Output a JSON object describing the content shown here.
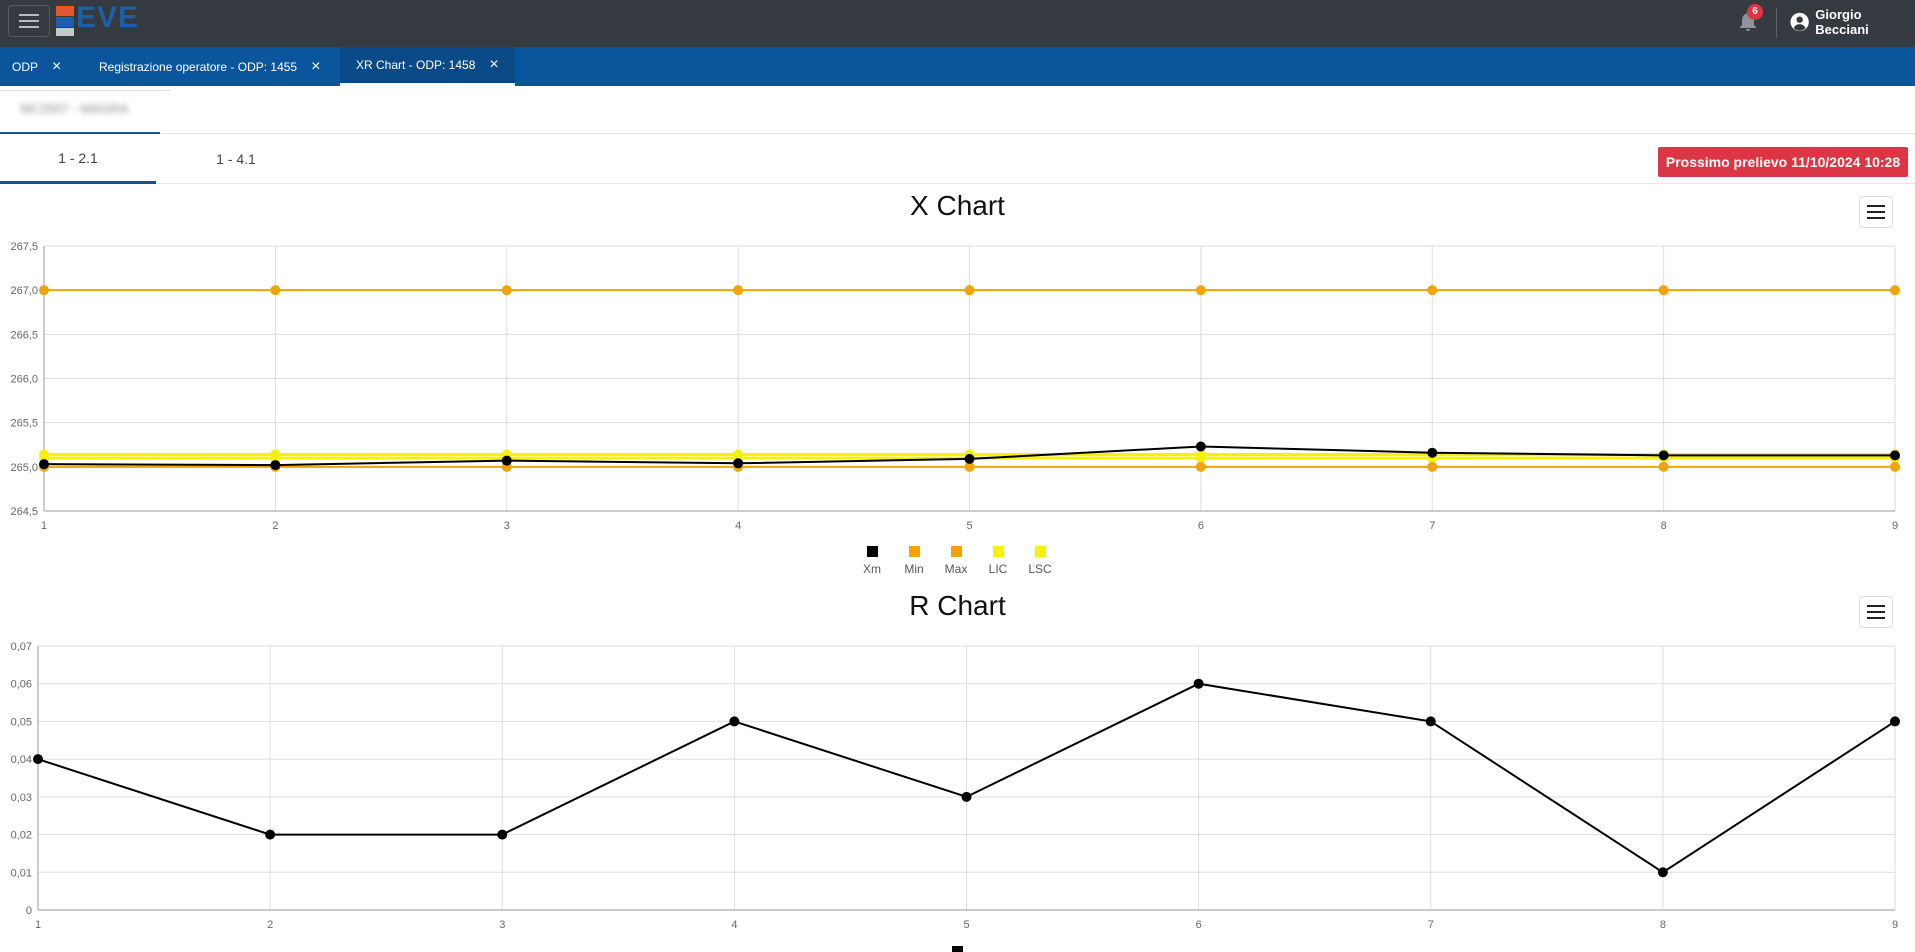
{
  "topbar": {
    "logo_text": "EVE",
    "notifications_count": "6",
    "user_name": "Giorgio Becciani"
  },
  "tabs": [
    {
      "label": "ODP"
    },
    {
      "label": "Registrazione operatore - ODP: 1455"
    },
    {
      "label": "XR Chart - ODP: 1458"
    }
  ],
  "subheader": {
    "blurred_text": "MC2507 - MAGRA"
  },
  "panel_tabs": [
    {
      "label": "1 - 2.1"
    },
    {
      "label": "1 - 4.1"
    }
  ],
  "alert_text": "Prossimo prelievo 11/10/2024 10:28",
  "colors": {
    "topbar": "#343a40",
    "tabbar": "#0b559c",
    "alert": "#dc3545",
    "xm": "#000000",
    "min": "#f0a30a",
    "max": "#f0a30a",
    "lic": "#f5f10a",
    "lsc": "#f5f10a"
  },
  "chart_data": [
    {
      "type": "line",
      "title": "X Chart",
      "x": [
        1,
        2,
        3,
        4,
        5,
        6,
        7,
        8,
        9
      ],
      "ylim": [
        264.5,
        267.5
      ],
      "yticks": [
        "264,5",
        "265,0",
        "265,5",
        "266,0",
        "266,5",
        "267,0",
        "267,5"
      ],
      "grid": true,
      "legend_position": "bottom",
      "series": [
        {
          "name": "Xm",
          "color": "#000000",
          "values": [
            265.03,
            265.02,
            265.07,
            265.04,
            265.09,
            265.23,
            265.16,
            265.13,
            265.13
          ]
        },
        {
          "name": "Min",
          "color": "#f0a30a",
          "values": [
            265.0,
            265.0,
            265.0,
            265.0,
            265.0,
            265.0,
            265.0,
            265.0,
            265.0
          ]
        },
        {
          "name": "Max",
          "color": "#f0a30a",
          "values": [
            267.0,
            267.0,
            267.0,
            267.0,
            267.0,
            267.0,
            267.0,
            267.0,
            267.0
          ]
        },
        {
          "name": "LIC",
          "color": "#f5f10a",
          "values": [
            265.1,
            265.1,
            265.1,
            265.1,
            265.1,
            265.1,
            265.1,
            265.1,
            265.1
          ]
        },
        {
          "name": "LSC",
          "color": "#f5f10a",
          "values": [
            265.14,
            265.14,
            265.14,
            265.14,
            265.14,
            265.14,
            265.14,
            265.14,
            265.14
          ]
        }
      ]
    },
    {
      "type": "line",
      "title": "R Chart",
      "x": [
        1,
        2,
        3,
        4,
        5,
        6,
        7,
        8,
        9
      ],
      "ylim": [
        0,
        0.07
      ],
      "yticks": [
        "0",
        "0,01",
        "0,02",
        "0,03",
        "0,04",
        "0,05",
        "0,06",
        "0,07"
      ],
      "grid": true,
      "series": [
        {
          "color": "#000000",
          "values": [
            0.04,
            0.02,
            0.02,
            0.05,
            0.03,
            0.06,
            0.05,
            0.01,
            0.05
          ]
        }
      ]
    }
  ]
}
